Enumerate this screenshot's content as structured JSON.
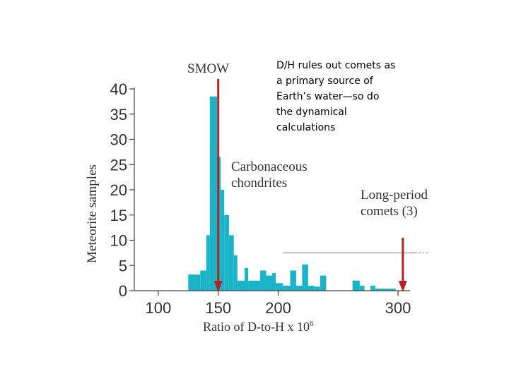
{
  "chart_data": {
    "type": "bar",
    "title": "",
    "xlabel": "Ratio of D-to-H x 10",
    "xlabel_superscript": "6",
    "ylabel": "Meteorite samples",
    "xlim": [
      80,
      310
    ],
    "ylim": [
      0,
      40
    ],
    "x_ticks": [
      100,
      150,
      200,
      300
    ],
    "y_ticks": [
      0,
      5,
      10,
      15,
      20,
      25,
      30,
      35,
      40
    ],
    "bar_color": "#1ab4c9",
    "bins": [
      {
        "x0": 125,
        "x1": 130,
        "value": 3.2
      },
      {
        "x0": 130,
        "x1": 135,
        "value": 3.2
      },
      {
        "x0": 135,
        "x1": 140,
        "value": 4
      },
      {
        "x0": 140,
        "x1": 143,
        "value": 11
      },
      {
        "x0": 143,
        "x1": 149,
        "value": 38.5
      },
      {
        "x0": 149,
        "x1": 152,
        "value": 26.5
      },
      {
        "x0": 152,
        "x1": 155,
        "value": 20
      },
      {
        "x0": 155,
        "x1": 159,
        "value": 15
      },
      {
        "x0": 159,
        "x1": 163,
        "value": 11
      },
      {
        "x0": 163,
        "x1": 166,
        "value": 7
      },
      {
        "x0": 166,
        "x1": 172,
        "value": 2
      },
      {
        "x0": 172,
        "x1": 175,
        "value": 4.5
      },
      {
        "x0": 175,
        "x1": 185,
        "value": 2
      },
      {
        "x0": 185,
        "x1": 190,
        "value": 4
      },
      {
        "x0": 190,
        "x1": 195,
        "value": 3
      },
      {
        "x0": 195,
        "x1": 198,
        "value": 3.5
      },
      {
        "x0": 198,
        "x1": 204,
        "value": 1.5
      },
      {
        "x0": 204,
        "x1": 210,
        "value": 1
      },
      {
        "x0": 210,
        "x1": 215,
        "value": 4
      },
      {
        "x0": 215,
        "x1": 220,
        "value": 1
      },
      {
        "x0": 220,
        "x1": 225,
        "value": 5.2
      },
      {
        "x0": 225,
        "x1": 230,
        "value": 1
      },
      {
        "x0": 230,
        "x1": 235,
        "value": 0.8
      },
      {
        "x0": 235,
        "x1": 240,
        "value": 3
      },
      {
        "x0": 262,
        "x1": 268,
        "value": 2
      },
      {
        "x0": 268,
        "x1": 272,
        "value": 1
      },
      {
        "x0": 277,
        "x1": 281,
        "value": 1
      },
      {
        "x0": 281,
        "x1": 298,
        "value": 0.4
      }
    ],
    "markers": [
      {
        "name": "smow",
        "x": 150,
        "y_top": 42,
        "label": "SMOW",
        "color": "#b22222"
      },
      {
        "name": "comets",
        "x": 304,
        "y_top": 10.5,
        "label": "",
        "color": "#b22222"
      }
    ],
    "annotations": [
      {
        "name": "carbonaceous-chondrites-label",
        "lines": [
          "Carbonaceous",
          "chondrites"
        ]
      },
      {
        "name": "long-period-comets-label",
        "lines": [
          "Long-period",
          "comets (3)"
        ]
      }
    ],
    "reference_line": {
      "y": 7.5,
      "x_start": 204,
      "x_end": 326
    }
  },
  "note": {
    "lines": [
      "D/H rules out comets as",
      "a primary source of",
      "Earth’s water—so do",
      "the dynamical",
      "calculations"
    ]
  }
}
